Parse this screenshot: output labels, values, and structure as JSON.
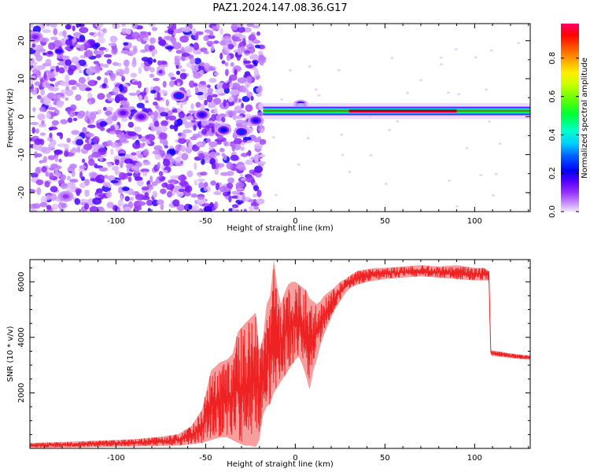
{
  "figure": {
    "title": "PAZ1.2024.147.08.36.G17"
  },
  "chart_data": [
    {
      "type": "heatmap",
      "xlabel": "Height of straight line (km)",
      "ylabel": "Frequency (Hz)",
      "xlim": [
        -148,
        131
      ],
      "ylim": [
        -25,
        24.5
      ],
      "xticks": [
        -100,
        -50,
        0,
        50,
        100
      ],
      "yticks": [
        -20,
        -10,
        0,
        10,
        20
      ],
      "colorbar": {
        "label": "Normalized spectral amplitude",
        "range": [
          0,
          0.98
        ],
        "ticks": [
          0.0,
          0.2,
          0.4,
          0.6,
          0.8
        ]
      },
      "ridge": {
        "frequency_hz": 1.5,
        "x_start": -18,
        "x_end": 131,
        "peak_amplitude": 0.98,
        "peak_x_range": [
          30,
          90
        ]
      },
      "features": [
        {
          "x": -65,
          "y": 5.5,
          "amplitude": 0.3
        },
        {
          "x": -52,
          "y": 0.5,
          "amplitude": 0.25
        },
        {
          "x": -40,
          "y": -3.5,
          "amplitude": 0.28
        },
        {
          "x": -30,
          "y": -4,
          "amplitude": 0.3
        },
        {
          "x": -22,
          "y": -1,
          "amplitude": 0.25
        },
        {
          "x": 3,
          "y": 3,
          "amplitude": 0.35
        },
        {
          "x": -145,
          "y": 21,
          "amplitude": 0.15
        },
        {
          "x": -128,
          "y": -21,
          "amplitude": 0.12
        },
        {
          "x": -96,
          "y": 1,
          "amplitude": 0.18
        },
        {
          "x": -86,
          "y": 0,
          "amplitude": 0.2
        }
      ]
    },
    {
      "type": "line",
      "xlabel": "Height of straight line (km)",
      "ylabel": "SNR (10 * v/v)",
      "xlim": [
        -148,
        131
      ],
      "ylim": [
        0,
        6800
      ],
      "xticks": [
        -100,
        -50,
        0,
        50,
        100
      ],
      "yticks": [
        2000,
        4000,
        6000
      ],
      "color": "#ff0000",
      "series": [
        {
          "x": [
            -148,
            -130,
            -110,
            -90,
            -75,
            -65,
            -58,
            -52,
            -47,
            -42,
            -38,
            -35,
            -32,
            -28,
            -25,
            -22,
            -20,
            -18,
            -16,
            -14,
            -12,
            -10,
            -8,
            -6,
            -4,
            -2,
            0,
            2,
            4,
            6,
            8,
            10,
            12,
            14,
            16,
            18,
            20,
            22,
            25,
            28,
            31,
            35,
            40,
            45,
            50,
            60,
            70,
            80,
            90,
            100,
            105,
            108,
            109,
            110,
            115,
            120,
            125,
            131
          ],
          "y": [
            120,
            130,
            140,
            170,
            220,
            300,
            430,
            650,
            1000,
            1450,
            1600,
            1700,
            1750,
            1900,
            2200,
            2600,
            2300,
            2400,
            3100,
            3300,
            3600,
            3550,
            3500,
            3700,
            3900,
            4100,
            4200,
            4300,
            4350,
            4400,
            4500,
            4400,
            4300,
            4600,
            4800,
            5000,
            5200,
            5400,
            5600,
            5800,
            6000,
            6100,
            6200,
            6250,
            6300,
            6350,
            6350,
            6300,
            6350,
            6300,
            6250,
            6250,
            3500,
            3450,
            3400,
            3350,
            3300,
            3300
          ],
          "y_max": [
            200,
            230,
            280,
            330,
            420,
            520,
            800,
            1400,
            2800,
            3100,
            3200,
            3400,
            4200,
            4500,
            4700,
            4900,
            3500,
            4000,
            5200,
            5500,
            6800,
            5800,
            5200,
            5600,
            5900,
            6000,
            6000,
            5900,
            5800,
            5700,
            5400,
            5300,
            5200,
            5300,
            5500,
            5600,
            5700,
            5800,
            6000,
            6100,
            6250,
            6400,
            6450,
            6500,
            6500,
            6550,
            6600,
            6550,
            6600,
            6500,
            6500,
            6400,
            3550,
            3520,
            3480,
            3420,
            3380,
            3360
          ],
          "y_min": [
            20,
            30,
            50,
            70,
            90,
            100,
            150,
            200,
            300,
            400,
            400,
            300,
            200,
            100,
            100,
            50,
            300,
            1200,
            1500,
            1600,
            2000,
            2200,
            2400,
            2600,
            2800,
            3000,
            3200,
            3300,
            3000,
            2600,
            2100,
            2800,
            3200,
            3700,
            4100,
            4400,
            4700,
            5000,
            5300,
            5600,
            5800,
            5900,
            6000,
            6050,
            6100,
            6150,
            6200,
            6150,
            6100,
            6050,
            6050,
            6050,
            3350,
            3330,
            3300,
            3250,
            3220,
            3200
          ]
        }
      ]
    }
  ]
}
